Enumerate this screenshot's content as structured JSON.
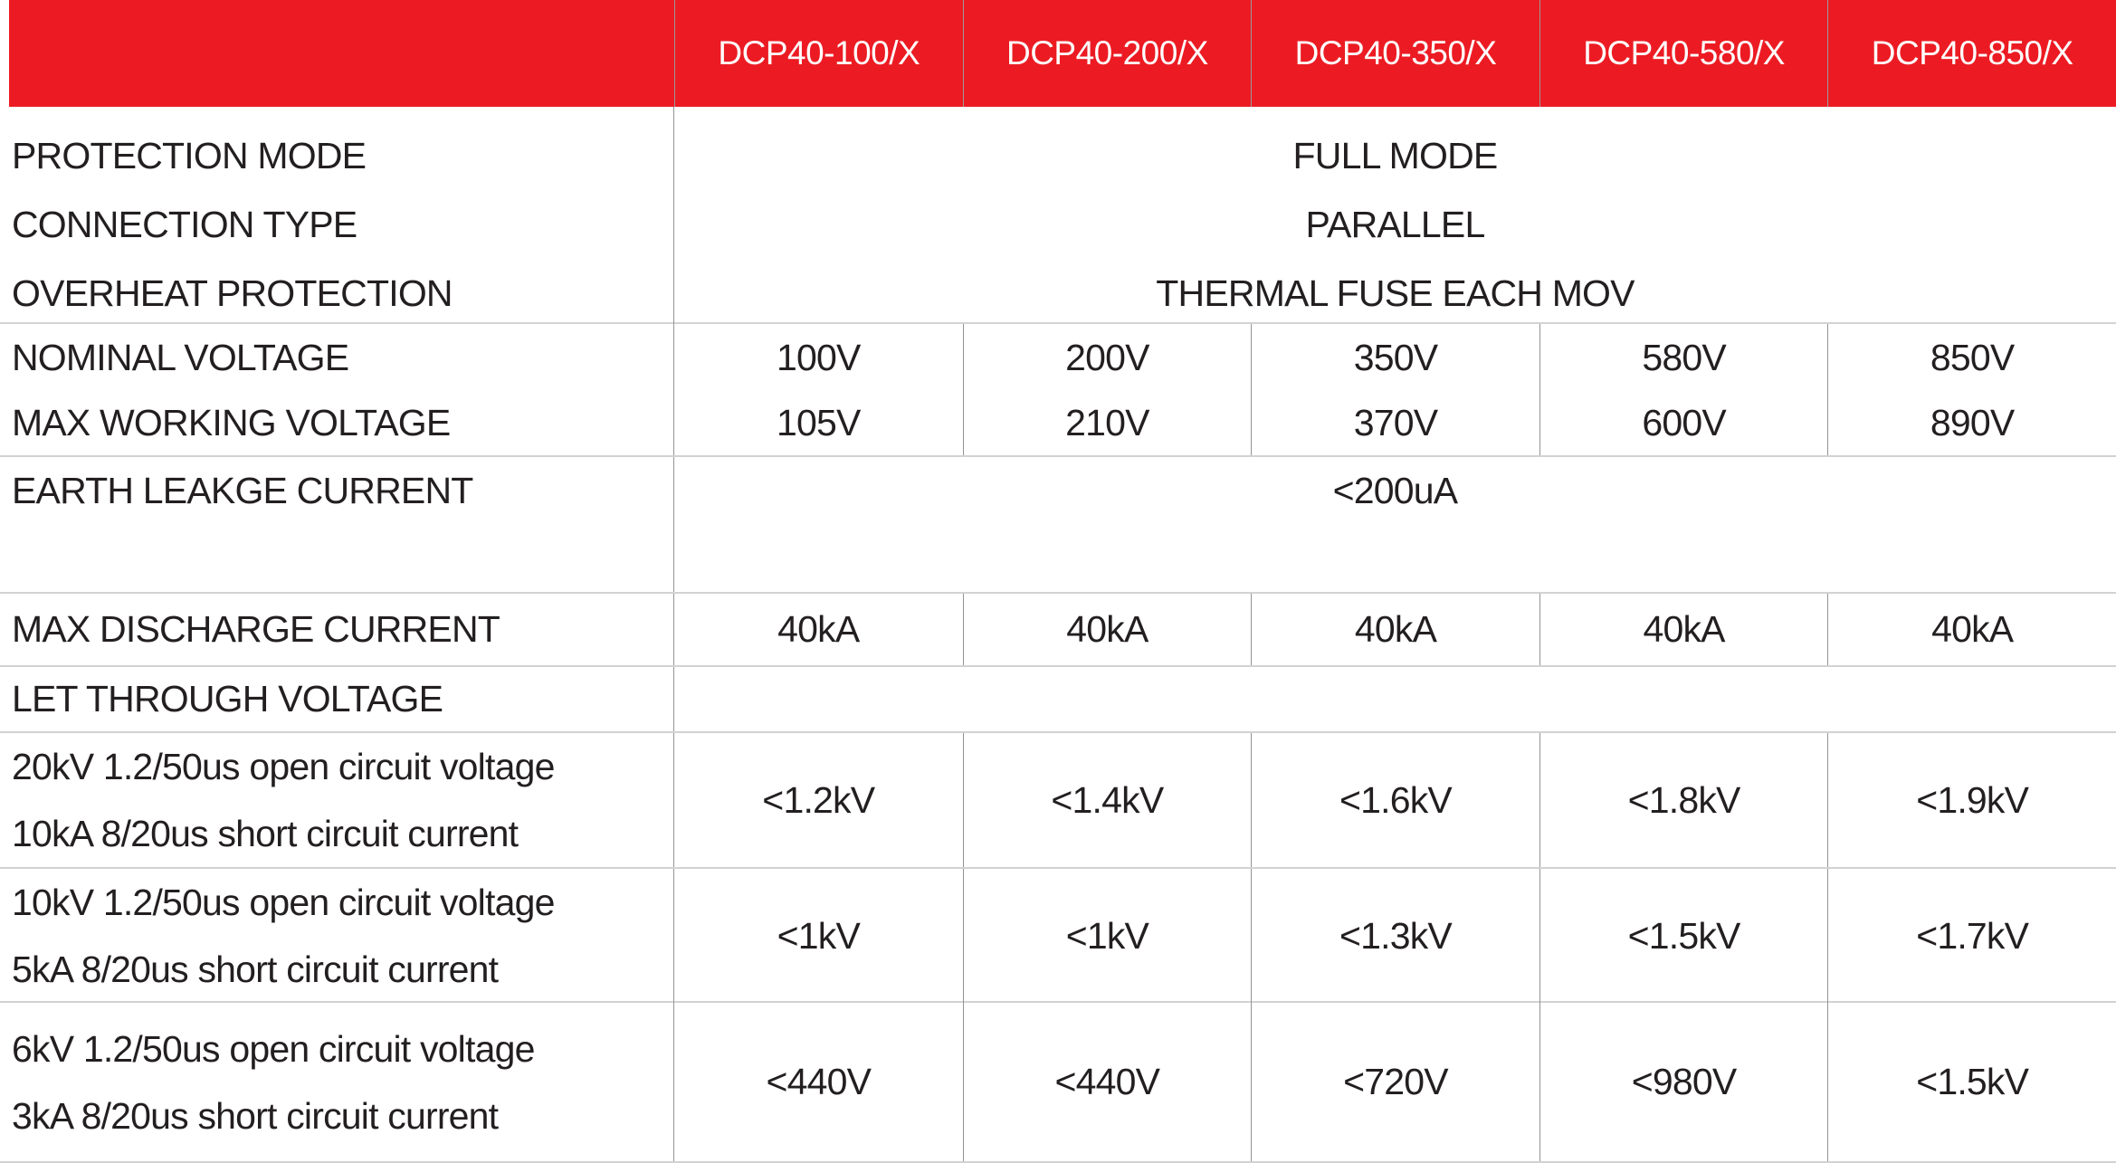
{
  "colors": {
    "header_bg": "#EC1B23",
    "header_text": "#FFFFFF",
    "body_text": "#231F20",
    "grid_line_vertical": "#949494",
    "grid_line_horizontal": "#D2D2D2"
  },
  "table": {
    "models": [
      "DCP40-100/X",
      "DCP40-200/X",
      "DCP40-350/X",
      "DCP40-580/X",
      "DCP40-850/X"
    ],
    "merged_rows": [
      {
        "label": "PROTECTION MODE",
        "value": "FULL MODE"
      },
      {
        "label": "CONNECTION TYPE",
        "value": "PARALLEL"
      },
      {
        "label": "OVERHEAT PROTECTION",
        "value": "THERMAL FUSE EACH MOV"
      }
    ],
    "voltage_rows": [
      {
        "label": "NOMINAL VOLTAGE",
        "values": [
          "100V",
          "200V",
          "350V",
          "580V",
          "850V"
        ]
      },
      {
        "label": "MAX WORKING VOLTAGE",
        "values": [
          "105V",
          "210V",
          "370V",
          "600V",
          "890V"
        ]
      }
    ],
    "earth_leakage": {
      "label": "EARTH LEAKGE CURRENT",
      "value": "<200uA"
    },
    "max_discharge": {
      "label": "MAX DISCHARGE CURRENT",
      "values": [
        "40kA",
        "40kA",
        "40kA",
        "40kA",
        "40kA"
      ]
    },
    "let_through": {
      "label": "LET THROUGH VOLTAGE"
    },
    "test_rows": [
      {
        "label_line1": "20kV 1.2/50us open circuit voltage",
        "label_line2": "10kA 8/20us short circuit current",
        "values": [
          "<1.2kV",
          "<1.4kV",
          "<1.6kV",
          "<1.8kV",
          "<1.9kV"
        ]
      },
      {
        "label_line1": "10kV 1.2/50us open circuit voltage",
        "label_line2": "5kA 8/20us short circuit current",
        "values": [
          "<1kV",
          "<1kV",
          "<1.3kV",
          "<1.5kV",
          "<1.7kV"
        ]
      },
      {
        "label_line1": "6kV 1.2/50us open circuit voltage",
        "label_line2": "3kA 8/20us short circuit current",
        "values": [
          "<440V",
          "<440V",
          "<720V",
          "<980V",
          "<1.5kV"
        ]
      }
    ]
  }
}
